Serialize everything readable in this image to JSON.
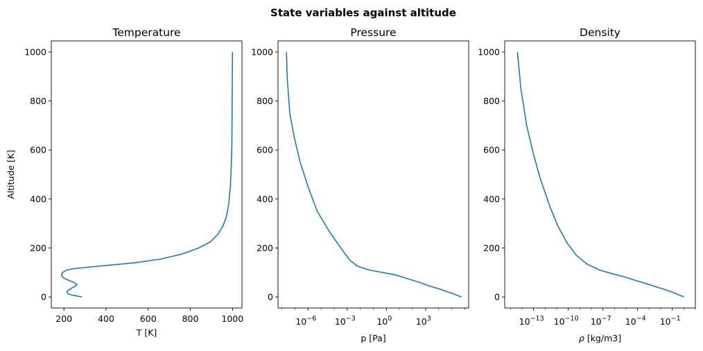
{
  "suptitle": "State variables against altitude",
  "chart_data": [
    {
      "type": "line",
      "title": "Temperature",
      "xlabel": "T [K]",
      "ylabel": "Altitude [K]",
      "xscale": "linear",
      "xlim": [
        140,
        1045
      ],
      "ylim": [
        -45,
        1045
      ],
      "xticks": [
        200,
        400,
        600,
        800,
        1000
      ],
      "yticks": [
        0,
        200,
        400,
        600,
        800,
        1000
      ],
      "color": "#1f77b4",
      "series": [
        {
          "x": [
            285,
            262,
            238,
            220,
            214,
            218,
            232,
            250,
            262,
            250,
            228,
            206,
            193,
            188,
            192,
            200,
            215,
            250,
            320,
            420,
            540,
            660,
            760,
            840,
            895,
            930,
            955,
            972,
            982,
            990,
            994,
            997,
            998,
            999,
            1000
          ],
          "y": [
            0,
            4,
            8,
            12,
            18,
            26,
            34,
            42,
            50,
            58,
            66,
            74,
            82,
            90,
            98,
            104,
            110,
            116,
            122,
            130,
            140,
            155,
            175,
            200,
            225,
            255,
            290,
            330,
            380,
            450,
            530,
            620,
            730,
            860,
            1000
          ]
        }
      ]
    },
    {
      "type": "line",
      "title": "Pressure",
      "xlabel": "p [Pa]",
      "ylabel": "",
      "xscale": "log",
      "xlim": [
        -8.3,
        6.3
      ],
      "ylim": [
        -45,
        1045
      ],
      "xticks": [
        -6,
        -3,
        0,
        3
      ],
      "xticklabels": [
        "10",
        "10",
        "10",
        "10"
      ],
      "xtickexp": [
        "−6",
        "−3",
        "0",
        "3"
      ],
      "yticks": [
        0,
        200,
        400,
        600,
        800,
        1000
      ],
      "color": "#1f77b4",
      "series": [
        {
          "log10x": [
            5.75,
            5.0,
            4.2,
            3.3,
            2.5,
            1.6,
            0.7,
            -0.3,
            -1.3,
            -2.2,
            -2.8,
            -3.5,
            -4.4,
            -5.3,
            -6.0,
            -6.6,
            -7.05,
            -7.4,
            -7.6,
            -7.65
          ],
          "y": [
            0,
            15,
            30,
            45,
            60,
            75,
            90,
            100,
            110,
            125,
            150,
            200,
            270,
            350,
            450,
            550,
            650,
            750,
            900,
            1000
          ]
        }
      ]
    },
    {
      "type": "line",
      "title": "Density",
      "xlabel": "ρ [kg/m3]",
      "ylabel": "",
      "xscale": "log",
      "xlim": [
        -15.5,
        1.0
      ],
      "ylim": [
        -45,
        1045
      ],
      "xticks": [
        -13,
        -10,
        -7,
        -4,
        -1
      ],
      "xticklabels": [
        "10",
        "10",
        "10",
        "10",
        "10"
      ],
      "xtickexp": [
        "−13",
        "−10",
        "−7",
        "−4",
        "−1"
      ],
      "yticks": [
        0,
        200,
        400,
        600,
        800,
        1000
      ],
      "color": "#1f77b4",
      "series": [
        {
          "log10x": [
            0.0,
            -0.5,
            -1.3,
            -2.3,
            -3.3,
            -4.0,
            -5.0,
            -6.2,
            -7.3,
            -8.4,
            -9.3,
            -10.1,
            -10.9,
            -11.6,
            -12.4,
            -13.0,
            -13.6,
            -14.1,
            -14.4
          ],
          "y": [
            0,
            10,
            25,
            40,
            55,
            65,
            80,
            95,
            110,
            135,
            170,
            220,
            290,
            370,
            480,
            580,
            700,
            850,
            1000
          ]
        }
      ]
    }
  ]
}
